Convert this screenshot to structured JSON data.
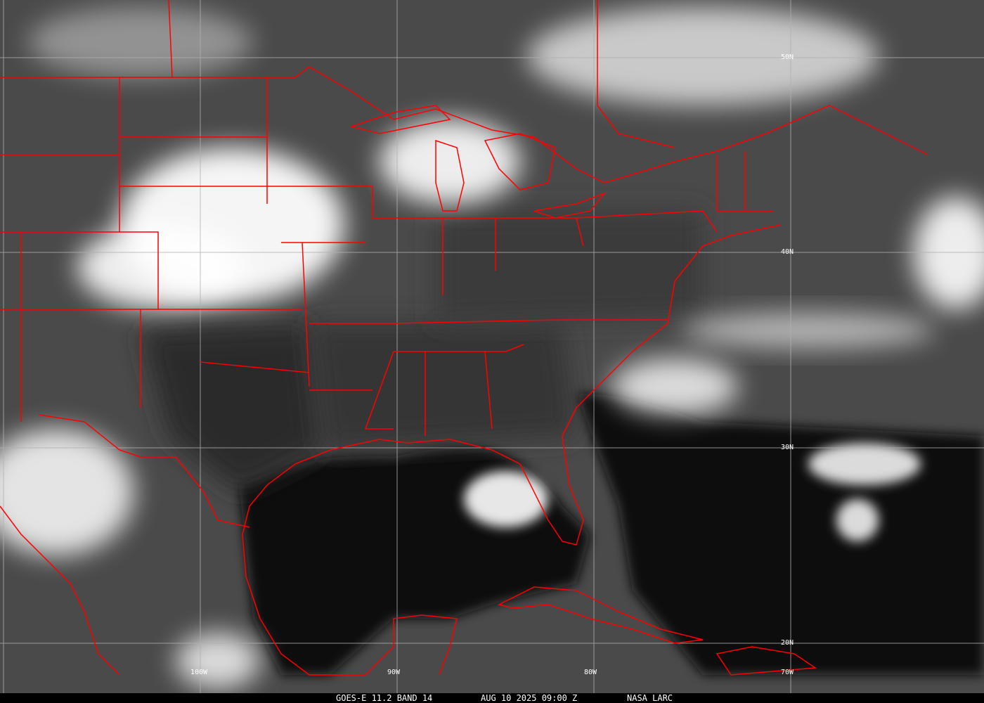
{
  "image": {
    "type": "satellite infrared image",
    "colors": {
      "borders": "#ff0000",
      "grid": "#b0b0b0",
      "cloud": "#ffffff",
      "ocean": "#0a0a0a",
      "land": "#3c3c3c"
    }
  },
  "grid_labels": {
    "latitudes": [
      "50N",
      "40N",
      "30N",
      "20N"
    ],
    "longitudes": [
      "100W",
      "90W",
      "80W",
      "70W"
    ]
  },
  "caption": {
    "product": "GOES-E 11.2 BAND 14",
    "datetime": "AUG 10 2025 09:00 Z",
    "source": "NASA LARC"
  }
}
